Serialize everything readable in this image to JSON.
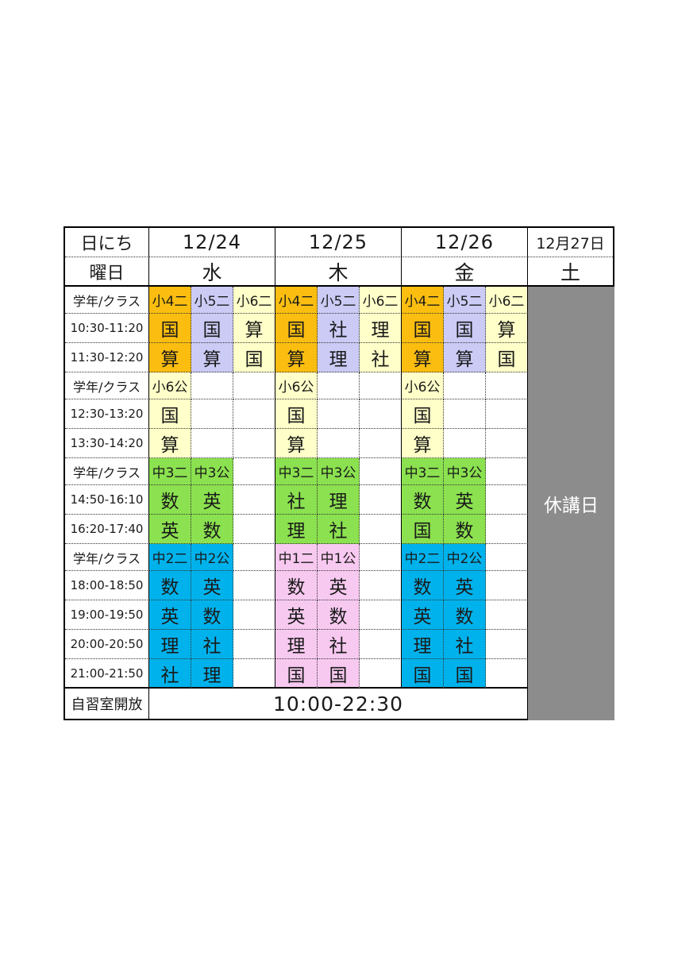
{
  "palette": {
    "orange": "#FBBE10",
    "lavender": "#CBCBF6",
    "yellow": "#FFFFC9",
    "green": "#8BE14F",
    "cyan": "#00B2EC",
    "pink": "#F8C9F0",
    "gray": "#8C8C8C"
  },
  "table": {
    "corner_date_label": "日にち",
    "corner_day_label": "曜日",
    "closed_label": "休講日",
    "study_room_label": "自習室開放",
    "study_room_hours": "10:00-22:30",
    "days": [
      {
        "date": "12/24",
        "weekday": "水"
      },
      {
        "date": "12/25",
        "weekday": "木"
      },
      {
        "date": "12/26",
        "weekday": "金"
      },
      {
        "date": "12月27日",
        "weekday": "土"
      }
    ],
    "rows": [
      {
        "type": "class",
        "label": "学年/クラス",
        "cells": [
          {
            "t": "小4二",
            "bg": "orange"
          },
          {
            "t": "小5二",
            "bg": "lavender"
          },
          {
            "t": "小6二",
            "bg": "yellow"
          },
          {
            "t": "小4二",
            "bg": "orange"
          },
          {
            "t": "小5二",
            "bg": "lavender"
          },
          {
            "t": "小6二",
            "bg": "yellow"
          },
          {
            "t": "小4二",
            "bg": "orange"
          },
          {
            "t": "小5二",
            "bg": "lavender"
          },
          {
            "t": "小6二",
            "bg": "yellow"
          }
        ]
      },
      {
        "type": "time",
        "label": "10:30-11:20",
        "cells": [
          {
            "t": "国",
            "bg": "orange"
          },
          {
            "t": "国",
            "bg": "lavender"
          },
          {
            "t": "算",
            "bg": "yellow"
          },
          {
            "t": "国",
            "bg": "orange"
          },
          {
            "t": "社",
            "bg": "lavender"
          },
          {
            "t": "理",
            "bg": "yellow"
          },
          {
            "t": "国",
            "bg": "orange"
          },
          {
            "t": "国",
            "bg": "lavender"
          },
          {
            "t": "算",
            "bg": "yellow"
          }
        ]
      },
      {
        "type": "time",
        "label": "11:30-12:20",
        "cells": [
          {
            "t": "算",
            "bg": "orange"
          },
          {
            "t": "算",
            "bg": "lavender"
          },
          {
            "t": "国",
            "bg": "yellow"
          },
          {
            "t": "算",
            "bg": "orange"
          },
          {
            "t": "理",
            "bg": "lavender"
          },
          {
            "t": "社",
            "bg": "yellow"
          },
          {
            "t": "算",
            "bg": "orange"
          },
          {
            "t": "算",
            "bg": "lavender"
          },
          {
            "t": "国",
            "bg": "yellow"
          }
        ]
      },
      {
        "type": "class",
        "label": "学年/クラス",
        "cells": [
          {
            "t": "小6公",
            "bg": "yellow"
          },
          {
            "t": "",
            "bg": ""
          },
          {
            "t": "",
            "bg": ""
          },
          {
            "t": "小6公",
            "bg": "yellow"
          },
          {
            "t": "",
            "bg": ""
          },
          {
            "t": "",
            "bg": ""
          },
          {
            "t": "小6公",
            "bg": "yellow"
          },
          {
            "t": "",
            "bg": ""
          },
          {
            "t": "",
            "bg": ""
          }
        ]
      },
      {
        "type": "time",
        "label": "12:30-13:20",
        "cells": [
          {
            "t": "国",
            "bg": "yellow"
          },
          {
            "t": "",
            "bg": ""
          },
          {
            "t": "",
            "bg": ""
          },
          {
            "t": "国",
            "bg": "yellow"
          },
          {
            "t": "",
            "bg": ""
          },
          {
            "t": "",
            "bg": ""
          },
          {
            "t": "国",
            "bg": "yellow"
          },
          {
            "t": "",
            "bg": ""
          },
          {
            "t": "",
            "bg": ""
          }
        ]
      },
      {
        "type": "time",
        "label": "13:30-14:20",
        "cells": [
          {
            "t": "算",
            "bg": "yellow"
          },
          {
            "t": "",
            "bg": ""
          },
          {
            "t": "",
            "bg": ""
          },
          {
            "t": "算",
            "bg": "yellow"
          },
          {
            "t": "",
            "bg": ""
          },
          {
            "t": "",
            "bg": ""
          },
          {
            "t": "算",
            "bg": "yellow"
          },
          {
            "t": "",
            "bg": ""
          },
          {
            "t": "",
            "bg": ""
          }
        ]
      },
      {
        "type": "class",
        "label": "学年/クラス",
        "cells": [
          {
            "t": "中3二",
            "bg": "green"
          },
          {
            "t": "中3公",
            "bg": "green"
          },
          {
            "t": "",
            "bg": ""
          },
          {
            "t": "中3二",
            "bg": "green"
          },
          {
            "t": "中3公",
            "bg": "green"
          },
          {
            "t": "",
            "bg": ""
          },
          {
            "t": "中3二",
            "bg": "green"
          },
          {
            "t": "中3公",
            "bg": "green"
          },
          {
            "t": "",
            "bg": ""
          }
        ]
      },
      {
        "type": "time",
        "label": "14:50-16:10",
        "cells": [
          {
            "t": "数",
            "bg": "green"
          },
          {
            "t": "英",
            "bg": "green"
          },
          {
            "t": "",
            "bg": ""
          },
          {
            "t": "社",
            "bg": "green"
          },
          {
            "t": "理",
            "bg": "green"
          },
          {
            "t": "",
            "bg": ""
          },
          {
            "t": "数",
            "bg": "green"
          },
          {
            "t": "英",
            "bg": "green"
          },
          {
            "t": "",
            "bg": ""
          }
        ]
      },
      {
        "type": "time",
        "label": "16:20-17:40",
        "cells": [
          {
            "t": "英",
            "bg": "green"
          },
          {
            "t": "数",
            "bg": "green"
          },
          {
            "t": "",
            "bg": ""
          },
          {
            "t": "理",
            "bg": "green"
          },
          {
            "t": "社",
            "bg": "green"
          },
          {
            "t": "",
            "bg": ""
          },
          {
            "t": "国",
            "bg": "green"
          },
          {
            "t": "数",
            "bg": "green"
          },
          {
            "t": "",
            "bg": ""
          }
        ]
      },
      {
        "type": "class",
        "label": "学年/クラス",
        "cells": [
          {
            "t": "中2二",
            "bg": "cyan"
          },
          {
            "t": "中2公",
            "bg": "cyan"
          },
          {
            "t": "",
            "bg": ""
          },
          {
            "t": "中1二",
            "bg": "pink"
          },
          {
            "t": "中1公",
            "bg": "pink"
          },
          {
            "t": "",
            "bg": ""
          },
          {
            "t": "中2二",
            "bg": "cyan"
          },
          {
            "t": "中2公",
            "bg": "cyan"
          },
          {
            "t": "",
            "bg": ""
          }
        ]
      },
      {
        "type": "time",
        "label": "18:00-18:50",
        "cells": [
          {
            "t": "数",
            "bg": "cyan"
          },
          {
            "t": "英",
            "bg": "cyan"
          },
          {
            "t": "",
            "bg": ""
          },
          {
            "t": "数",
            "bg": "pink"
          },
          {
            "t": "英",
            "bg": "pink"
          },
          {
            "t": "",
            "bg": ""
          },
          {
            "t": "数",
            "bg": "cyan"
          },
          {
            "t": "英",
            "bg": "cyan"
          },
          {
            "t": "",
            "bg": ""
          }
        ]
      },
      {
        "type": "time",
        "label": "19:00-19:50",
        "cells": [
          {
            "t": "英",
            "bg": "cyan"
          },
          {
            "t": "数",
            "bg": "cyan"
          },
          {
            "t": "",
            "bg": ""
          },
          {
            "t": "英",
            "bg": "pink"
          },
          {
            "t": "数",
            "bg": "pink"
          },
          {
            "t": "",
            "bg": ""
          },
          {
            "t": "英",
            "bg": "cyan"
          },
          {
            "t": "数",
            "bg": "cyan"
          },
          {
            "t": "",
            "bg": ""
          }
        ]
      },
      {
        "type": "time",
        "label": "20:00-20:50",
        "cells": [
          {
            "t": "理",
            "bg": "cyan"
          },
          {
            "t": "社",
            "bg": "cyan"
          },
          {
            "t": "",
            "bg": ""
          },
          {
            "t": "理",
            "bg": "pink"
          },
          {
            "t": "社",
            "bg": "pink"
          },
          {
            "t": "",
            "bg": ""
          },
          {
            "t": "理",
            "bg": "cyan"
          },
          {
            "t": "社",
            "bg": "cyan"
          },
          {
            "t": "",
            "bg": ""
          }
        ]
      },
      {
        "type": "time",
        "label": "21:00-21:50",
        "cells": [
          {
            "t": "社",
            "bg": "cyan"
          },
          {
            "t": "理",
            "bg": "cyan"
          },
          {
            "t": "",
            "bg": ""
          },
          {
            "t": "国",
            "bg": "pink"
          },
          {
            "t": "国",
            "bg": "pink"
          },
          {
            "t": "",
            "bg": ""
          },
          {
            "t": "国",
            "bg": "cyan"
          },
          {
            "t": "国",
            "bg": "cyan"
          },
          {
            "t": "",
            "bg": ""
          }
        ]
      }
    ]
  }
}
